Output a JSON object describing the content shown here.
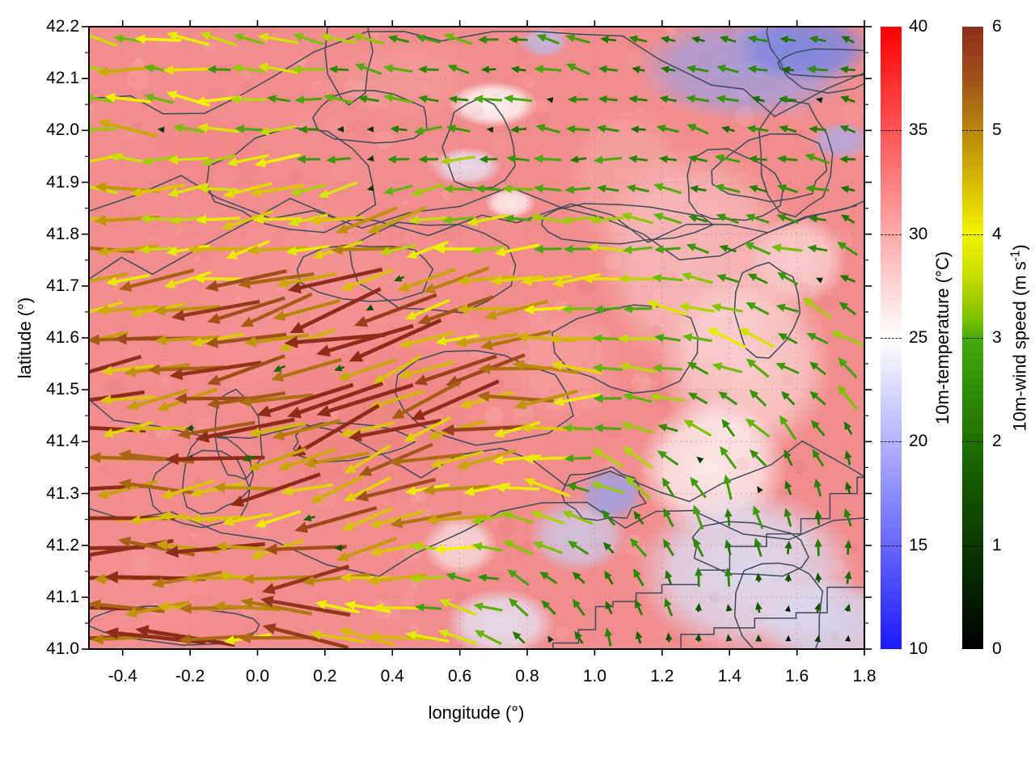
{
  "figure": {
    "x_axis_label": "longitude (°)",
    "y_axis_label": "latitude (°)"
  },
  "chart_data": {
    "type": "heatmap",
    "overlays": [
      "temperature-contour-lines",
      "wind-vector-arrows"
    ],
    "x_axis": {
      "label": "longitude (°)",
      "range": [
        -0.5,
        1.8
      ],
      "tick_values": [
        -0.4,
        -0.2,
        0.0,
        0.2,
        0.4,
        0.6,
        0.8,
        1.0,
        1.2,
        1.4,
        1.6,
        1.8
      ],
      "tick_labels": [
        "-0.4",
        "-0.2",
        "0.0",
        "0.2",
        "0.4",
        "0.6",
        "0.8",
        "1.0",
        "1.2",
        "1.4",
        "1.6",
        "1.8"
      ],
      "minor_tick_step": 0.1,
      "grid": "dotted at major ticks"
    },
    "y_axis": {
      "label": "latitude (°)",
      "range": [
        41.0,
        42.2
      ],
      "tick_values": [
        41.0,
        41.1,
        41.2,
        41.3,
        41.4,
        41.5,
        41.6,
        41.7,
        41.8,
        41.9,
        42.0,
        42.1,
        42.2
      ],
      "tick_labels": [
        "41.0",
        "41.1",
        "41.2",
        "41.3",
        "41.4",
        "41.5",
        "41.6",
        "41.7",
        "41.8",
        "41.9",
        "42.0",
        "42.1",
        "42.2"
      ],
      "minor_tick_step": 0.05,
      "grid": "dotted at major ticks"
    },
    "colorbars": [
      {
        "id": "temperature",
        "label": "10m-temperature (°C)",
        "range": [
          10,
          40
        ],
        "tick_labels": [
          "40",
          "35",
          "30",
          "25",
          "20",
          "15",
          "10"
        ],
        "tick_values": [
          40,
          35,
          30,
          25,
          20,
          15,
          10
        ],
        "gradient_stops": [
          [
            40,
            "#ff0000"
          ],
          [
            25,
            "#ffffff"
          ],
          [
            10,
            "#1a1aff"
          ]
        ]
      },
      {
        "id": "wind-speed",
        "label": "10m-wind speed (m s⁻¹)",
        "label_parts": {
          "pre": "10m-wind speed (m s",
          "sup": "-1",
          "post": ")"
        },
        "range": [
          0,
          6
        ],
        "tick_labels": [
          "6",
          "5",
          "4",
          "3",
          "2",
          "1",
          "0"
        ],
        "tick_values": [
          6,
          5,
          4,
          3,
          2,
          1,
          0
        ],
        "gradient_stops": [
          [
            6,
            "#8e2c1a"
          ],
          [
            5.5,
            "#9f511a"
          ],
          [
            5,
            "#b8860b"
          ],
          [
            4.5,
            "#d6bb06"
          ],
          [
            4,
            "#f2f200"
          ],
          [
            3.6,
            "#c8dd00"
          ],
          [
            3.2,
            "#7fc300"
          ],
          [
            3,
            "#4aa90e"
          ],
          [
            2.5,
            "#2f8c06"
          ],
          [
            2,
            "#1e7000"
          ],
          [
            1.5,
            "#135200"
          ],
          [
            1,
            "#0a3800"
          ],
          [
            0.5,
            "#041e00"
          ],
          [
            0,
            "#000000"
          ]
        ]
      }
    ],
    "temperature_field": {
      "base_color": "#f28d8d",
      "blobs": [
        {
          "lon": 1.62,
          "lat": 42.16,
          "rx": 0.28,
          "ry": 0.09,
          "color": "#7d86e0",
          "alpha": 0.95
        },
        {
          "lon": 1.45,
          "lat": 42.12,
          "rx": 0.45,
          "ry": 0.14,
          "color": "#98a0e8",
          "alpha": 0.8
        },
        {
          "lon": 1.73,
          "lat": 41.98,
          "rx": 0.12,
          "ry": 0.05,
          "color": "#a8aeec",
          "alpha": 0.8
        },
        {
          "lon": 0.85,
          "lat": 42.17,
          "rx": 0.1,
          "ry": 0.04,
          "color": "#b9bdf0",
          "alpha": 0.8
        },
        {
          "lon": 0.7,
          "lat": 42.05,
          "rx": 0.18,
          "ry": 0.06,
          "color": "#ffffff",
          "alpha": 0.9
        },
        {
          "lon": 0.62,
          "lat": 41.93,
          "rx": 0.14,
          "ry": 0.05,
          "color": "#e6e6fa",
          "alpha": 0.85
        },
        {
          "lon": 0.75,
          "lat": 41.86,
          "rx": 0.1,
          "ry": 0.04,
          "color": "#ffffff",
          "alpha": 0.8
        },
        {
          "lon": 1.05,
          "lat": 41.3,
          "rx": 0.13,
          "ry": 0.07,
          "color": "#9aa2e6",
          "alpha": 0.9
        },
        {
          "lon": 0.95,
          "lat": 41.22,
          "rx": 0.2,
          "ry": 0.1,
          "color": "#c8cdf0",
          "alpha": 0.8
        },
        {
          "lon": 1.45,
          "lat": 41.15,
          "rx": 0.45,
          "ry": 0.22,
          "color": "#dcdcf2",
          "alpha": 0.95
        },
        {
          "lon": 1.7,
          "lat": 41.05,
          "rx": 0.3,
          "ry": 0.12,
          "color": "#d4d6f0",
          "alpha": 0.95
        },
        {
          "lon": 0.72,
          "lat": 41.05,
          "rx": 0.22,
          "ry": 0.09,
          "color": "#e4e4f6",
          "alpha": 0.9
        },
        {
          "lon": 1.35,
          "lat": 41.35,
          "rx": 0.3,
          "ry": 0.18,
          "color": "#fdf2f2",
          "alpha": 0.9
        },
        {
          "lon": 1.45,
          "lat": 41.55,
          "rx": 0.35,
          "ry": 0.25,
          "color": "#fbdada",
          "alpha": 0.8
        },
        {
          "lon": 1.3,
          "lat": 41.75,
          "rx": 0.4,
          "ry": 0.3,
          "color": "#f8c8c8",
          "alpha": 0.7
        },
        {
          "lon": 1.6,
          "lat": 41.75,
          "rx": 0.2,
          "ry": 0.12,
          "color": "#fce8e8",
          "alpha": 0.7
        },
        {
          "lon": 0.6,
          "lat": 41.2,
          "rx": 0.15,
          "ry": 0.08,
          "color": "#f6e8e8",
          "alpha": 0.8
        },
        {
          "lon": 1.1,
          "lat": 41.9,
          "rx": 0.25,
          "ry": 0.2,
          "color": "#f7b0b0",
          "alpha": 0.6
        },
        {
          "lon": 0.9,
          "lat": 41.55,
          "rx": 0.25,
          "ry": 0.15,
          "color": "#f5a5a5",
          "alpha": 0.55
        },
        {
          "lon": 0.45,
          "lat": 42.1,
          "rx": 0.3,
          "ry": 0.1,
          "color": "#f3a0a0",
          "alpha": 0.5
        },
        {
          "lon": -0.15,
          "lat": 41.95,
          "rx": 0.25,
          "ry": 0.12,
          "color": "#ef8484",
          "alpha": 0.5
        },
        {
          "lon": 0.3,
          "lat": 41.45,
          "rx": 0.5,
          "ry": 0.25,
          "color": "#ee8080",
          "alpha": 0.5
        },
        {
          "lon": 0.15,
          "lat": 41.65,
          "rx": 0.45,
          "ry": 0.3,
          "color": "#f49898",
          "alpha": 0.5
        },
        {
          "lon": -0.35,
          "lat": 41.1,
          "rx": 0.3,
          "ry": 0.15,
          "color": "#f29292",
          "alpha": 0.6
        }
      ]
    },
    "wind_field": {
      "units": "m s⁻¹",
      "lon_samples": [
        -0.5,
        -0.27,
        -0.04,
        0.19,
        0.42,
        0.65,
        0.88,
        1.11,
        1.34,
        1.57,
        1.8
      ],
      "lat_samples": [
        42.2,
        42.08,
        41.96,
        41.84,
        41.72,
        41.6,
        41.48,
        41.36,
        41.24,
        41.12,
        41.0
      ],
      "u": [
        [
          -4.0,
          -3.6,
          -3.0,
          -3.2,
          -2.6,
          -2.6,
          -2.2,
          -2.4,
          -2.0,
          -2.2,
          -1.8
        ],
        [
          -4.0,
          -3.8,
          -3.2,
          -2.8,
          -2.6,
          -2.4,
          -2.5,
          -2.2,
          -2.4,
          -2.0,
          -2.0
        ],
        [
          -4.2,
          -4.0,
          -3.4,
          -3.0,
          -2.6,
          -2.8,
          -2.6,
          -2.4,
          -2.2,
          -2.4,
          -2.2
        ],
        [
          -4.4,
          -4.2,
          -4.0,
          -4.2,
          -3.8,
          -3.4,
          -3.0,
          -3.2,
          -2.8,
          -2.4,
          -2.0
        ],
        [
          -4.6,
          -4.4,
          -4.6,
          -5.0,
          -4.6,
          -4.2,
          -3.6,
          -3.4,
          -3.0,
          -2.6,
          -2.4
        ],
        [
          -5.0,
          -4.8,
          -5.2,
          -5.4,
          -5.2,
          -4.6,
          -4.0,
          -3.6,
          -3.2,
          -2.8,
          -2.6
        ],
        [
          -5.4,
          -5.2,
          -5.4,
          -5.6,
          -5.4,
          -5.0,
          -4.2,
          -3.6,
          -2.6,
          -2.2,
          -2.0
        ],
        [
          -5.6,
          -5.4,
          -5.2,
          -5.0,
          -5.2,
          -4.8,
          -3.8,
          -2.8,
          -1.6,
          -1.2,
          -0.9
        ],
        [
          -5.8,
          -5.6,
          -5.2,
          -4.8,
          -4.6,
          -4.0,
          -2.6,
          -1.6,
          -0.6,
          -0.2,
          -0.1
        ],
        [
          -6.0,
          -5.8,
          -5.4,
          -4.8,
          -4.0,
          -3.0,
          -1.6,
          -0.8,
          -0.2,
          0.0,
          0.1
        ],
        [
          -5.8,
          -5.6,
          -5.2,
          -4.6,
          -3.8,
          -3.0,
          -1.2,
          -0.5,
          -0.1,
          0.1,
          0.2
        ]
      ],
      "v": [
        [
          0.5,
          0.9,
          0.6,
          0.4,
          1.0,
          0.3,
          0.7,
          0.4,
          0.6,
          0.7,
          0.5
        ],
        [
          0.3,
          0.5,
          0.2,
          0.5,
          0.6,
          0.3,
          0.5,
          0.3,
          0.5,
          0.6,
          0.5
        ],
        [
          0.1,
          0.0,
          -0.3,
          -0.4,
          -0.3,
          0.0,
          0.2,
          0.3,
          0.4,
          0.4,
          0.5
        ],
        [
          0.0,
          -0.2,
          -0.6,
          -0.9,
          -0.8,
          -0.4,
          0.1,
          0.3,
          0.5,
          0.7,
          0.9
        ],
        [
          -0.3,
          -0.5,
          -0.9,
          -1.3,
          -1.3,
          -0.8,
          -0.2,
          0.3,
          0.6,
          0.9,
          1.1
        ],
        [
          -0.4,
          -0.6,
          -1.0,
          -1.5,
          -1.5,
          -1.0,
          -0.3,
          0.4,
          0.9,
          1.3,
          1.5
        ],
        [
          -0.4,
          -0.5,
          -1.2,
          -1.8,
          -1.8,
          -1.2,
          -0.2,
          0.8,
          1.5,
          1.8,
          1.9
        ],
        [
          -0.2,
          -0.4,
          -1.0,
          -1.6,
          -1.8,
          -1.2,
          0.2,
          1.4,
          2.2,
          2.2,
          2.0
        ],
        [
          0.0,
          -0.2,
          -0.6,
          -1.0,
          -1.2,
          -0.4,
          1.2,
          2.0,
          2.4,
          2.2,
          2.0
        ],
        [
          0.2,
          0.0,
          -0.2,
          -0.3,
          0.2,
          0.8,
          2.0,
          2.4,
          2.0,
          1.4,
          1.5
        ],
        [
          0.4,
          0.3,
          0.2,
          0.4,
          0.8,
          1.2,
          2.2,
          2.0,
          1.2,
          1.0,
          1.2
        ]
      ]
    },
    "contour_style": {
      "color": "#3d4a58",
      "width": 1.5
    },
    "render": {
      "seed": 11,
      "arrow_cols": 26,
      "arrow_rows": 21
    }
  }
}
